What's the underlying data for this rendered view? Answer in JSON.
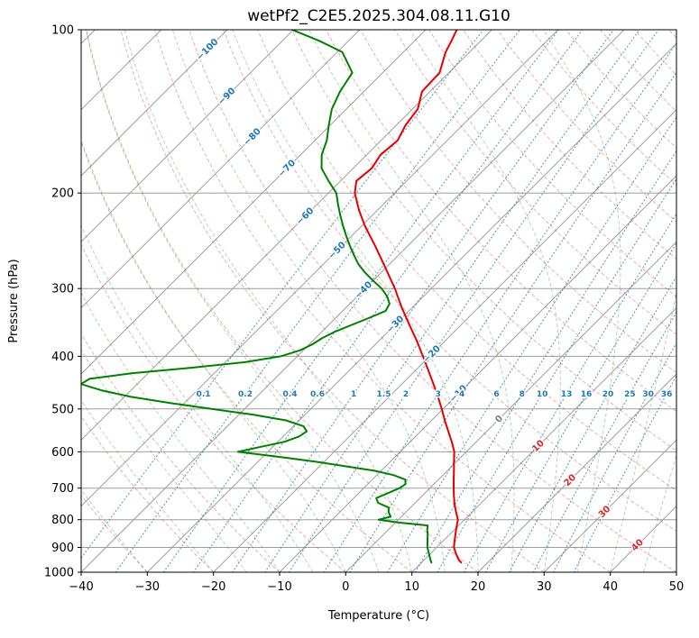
{
  "chart_data": {
    "type": "skewt",
    "title": "wetPf2_C2E5.2025.304.08.11.G10",
    "xlabel": "Temperature (°C)",
    "ylabel": "Pressure (hPa)",
    "xlim": [
      -40,
      50
    ],
    "pressure_lim": [
      1000,
      100
    ],
    "x_ticks": [
      -40,
      -30,
      -20,
      -10,
      0,
      10,
      20,
      30,
      40,
      50
    ],
    "pressure_ticks": [
      100,
      200,
      300,
      400,
      500,
      600,
      700,
      800,
      900,
      1000
    ],
    "skew_deg": 45,
    "grid_color": "#9e9e9e",
    "isotherms": {
      "min": -120,
      "max": 50,
      "step": 10,
      "color": "#9e9e9e",
      "labeled": [
        -100,
        -90,
        -80,
        -70,
        -60,
        -50,
        -40,
        -30,
        -20,
        -10,
        0,
        10,
        20,
        30,
        40
      ],
      "label_colors": {
        "negative": "#1f77b4",
        "zero": "#808080",
        "positive": "#d62728"
      }
    },
    "dry_adiabats": {
      "min": -40,
      "max": 190,
      "step": 10,
      "color": "#d62728"
    },
    "moist_adiabats": {
      "values": [
        -40,
        -30,
        -20,
        -15,
        -10,
        -5,
        0,
        5,
        10,
        15,
        20,
        25,
        30,
        35,
        40,
        45,
        50,
        55,
        60
      ],
      "color": "#2ca02c"
    },
    "mixing_ratio_lines": {
      "values": [
        0.1,
        0.2,
        0.4,
        0.6,
        1,
        1.5,
        2,
        3,
        4,
        6,
        8,
        10,
        13,
        16,
        20,
        25,
        30,
        36
      ],
      "color": "#1f77b4"
    },
    "series": [
      {
        "name": "temperature",
        "color": "#e60000",
        "pressure": [
          960,
          950,
          925,
          900,
          875,
          850,
          825,
          800,
          775,
          750,
          725,
          700,
          675,
          650,
          625,
          600,
          575,
          550,
          525,
          500,
          475,
          450,
          425,
          400,
          375,
          350,
          325,
          300,
          275,
          250,
          230,
          215,
          200,
          190,
          180,
          170,
          160,
          150,
          140,
          130,
          120,
          110,
          105,
          100
        ],
        "values": [
          16.0,
          15.3,
          13.9,
          12.6,
          11.7,
          10.8,
          9.9,
          9.0,
          7.6,
          6.2,
          4.9,
          3.6,
          2.3,
          1.0,
          -0.4,
          -1.8,
          -3.7,
          -5.8,
          -8.0,
          -10.2,
          -12.6,
          -15.2,
          -18.0,
          -21.0,
          -24.2,
          -27.8,
          -31.6,
          -35.5,
          -40.0,
          -45.0,
          -49.5,
          -52.8,
          -56.0,
          -57.6,
          -57.2,
          -57.9,
          -57.5,
          -58.6,
          -59.2,
          -61.2,
          -61.4,
          -63.6,
          -64.4,
          -65.3
        ]
      },
      {
        "name": "dewpoint",
        "color": "#008000",
        "pressure": [
          960,
          950,
          925,
          900,
          875,
          850,
          835,
          820,
          810,
          800,
          790,
          775,
          760,
          745,
          730,
          715,
          700,
          688,
          675,
          662,
          650,
          638,
          625,
          612,
          600,
          588,
          575,
          562,
          550,
          538,
          525,
          512,
          500,
          488,
          475,
          462,
          450,
          440,
          430,
          420,
          410,
          400,
          390,
          380,
          370,
          360,
          350,
          340,
          330,
          320,
          310,
          300,
          290,
          280,
          270,
          260,
          250,
          240,
          230,
          220,
          210,
          200,
          190,
          180,
          170,
          160,
          150,
          140,
          130,
          120,
          110,
          105,
          100
        ],
        "values": [
          11.5,
          11.0,
          9.8,
          8.6,
          7.6,
          6.6,
          5.9,
          5.3,
          0.5,
          -3.0,
          -1.6,
          -2.6,
          -3.3,
          -5.6,
          -6.6,
          -5.6,
          -4.6,
          -4.3,
          -5.0,
          -7.5,
          -11.0,
          -16.0,
          -21.5,
          -28.0,
          -34.5,
          -32.0,
          -29.0,
          -27.6,
          -27.2,
          -28.5,
          -32.0,
          -38.0,
          -45.0,
          -52.0,
          -59.0,
          -64.5,
          -68.5,
          -68.0,
          -62.5,
          -54.5,
          -47.0,
          -42.5,
          -40.5,
          -39.5,
          -39.0,
          -38.0,
          -36.5,
          -35.0,
          -33.5,
          -34.0,
          -35.5,
          -37.5,
          -40.0,
          -42.5,
          -44.8,
          -46.8,
          -48.8,
          -50.8,
          -52.8,
          -54.8,
          -56.8,
          -58.8,
          -61.8,
          -64.8,
          -66.8,
          -68.2,
          -70.2,
          -72.2,
          -73.6,
          -74.6,
          -79.2,
          -84.2,
          -90.2
        ]
      }
    ]
  }
}
